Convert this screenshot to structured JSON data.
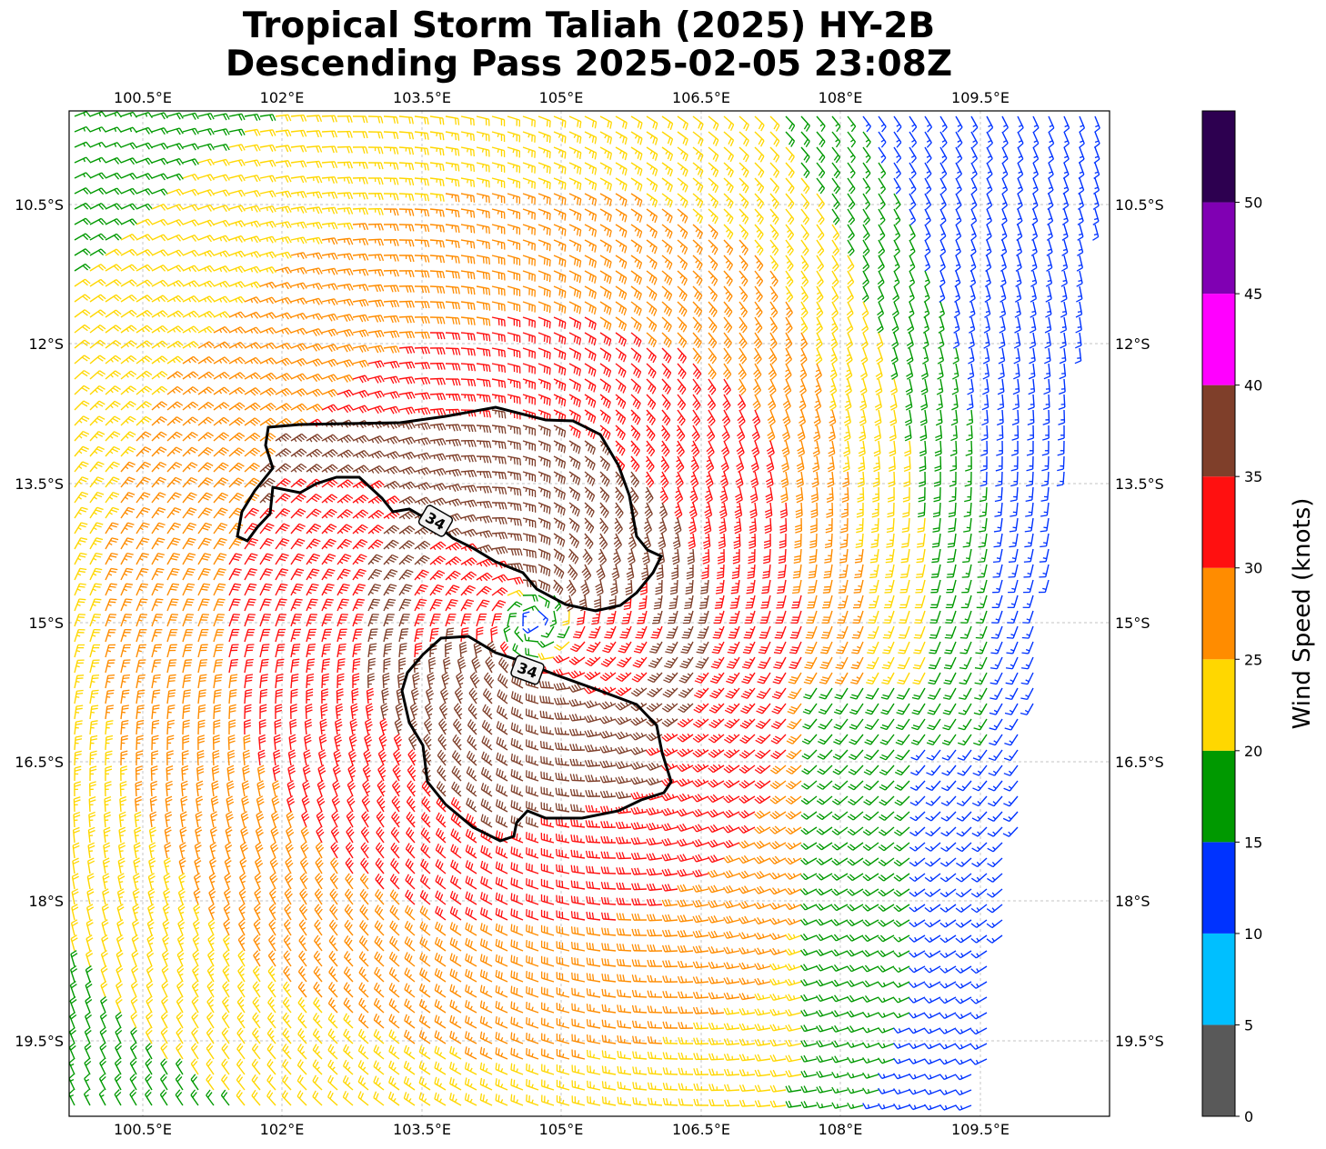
{
  "title_line1": "Tropical Storm Taliah (2025) HY-2B",
  "title_line2": "Descending Pass 2025-02-05 23:08Z",
  "lon_ticks": [
    "100.5°E",
    "102°E",
    "103.5°E",
    "105°E",
    "106.5°E",
    "108°E",
    "109.5°E"
  ],
  "lat_ticks": [
    "10.5°S",
    "12°S",
    "13.5°S",
    "15°S",
    "16.5°S",
    "18°S",
    "19.5°S"
  ],
  "contour_labels": [
    "34",
    "34"
  ],
  "colorbar": {
    "label": "Wind Speed (knots)",
    "ticks": [
      "0",
      "5",
      "10",
      "15",
      "20",
      "25",
      "30",
      "35",
      "40",
      "45",
      "50"
    ],
    "colors": [
      "#595959",
      "#00bfff",
      "#0033ff",
      "#009900",
      "#ffd700",
      "#ff8c00",
      "#ff1010",
      "#7f3f2a",
      "#ff00ff",
      "#8000b3",
      "#2d0050"
    ]
  },
  "chart_data": {
    "type": "wind-barb map",
    "lon_range": [
      99.7,
      110.9
    ],
    "lat_range": [
      -20.3,
      -9.5
    ],
    "center": {
      "lon": 104.7,
      "lat": -15.0
    },
    "speed_units": "knots",
    "contour_level": 34
  }
}
